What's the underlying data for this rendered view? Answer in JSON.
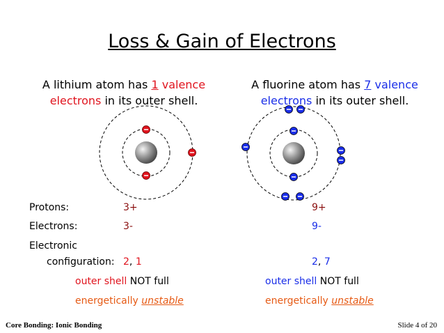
{
  "title": "Loss & Gain of Electrons",
  "lithium": {
    "caption": [
      "A lithium atom has",
      "1",
      "valence",
      "electrons",
      "in its outer shell."
    ],
    "protons": "3+",
    "electrons": "3-",
    "configuration": [
      "2",
      ",",
      "1"
    ],
    "shell": [
      "outer shell",
      "NOT full"
    ],
    "stability": [
      "energetically",
      "unstable"
    ]
  },
  "fluorine": {
    "caption": [
      "A fluorine atom has",
      "7",
      "valence",
      "electrons",
      "in its outer shell."
    ],
    "protons": "9+",
    "electrons": "9-",
    "configuration": [
      "2",
      ",",
      "7"
    ],
    "shell": [
      "outer shell",
      "NOT full"
    ],
    "stability": [
      "energetically",
      "unstable"
    ]
  },
  "labels": {
    "protons": "Protons:",
    "electrons": "Electrons:",
    "configuration": [
      "Electronic",
      "configuration:"
    ]
  },
  "footer": {
    "left": "Core Bonding: Ionic Bonding",
    "right": "Slide 4 of 20"
  }
}
